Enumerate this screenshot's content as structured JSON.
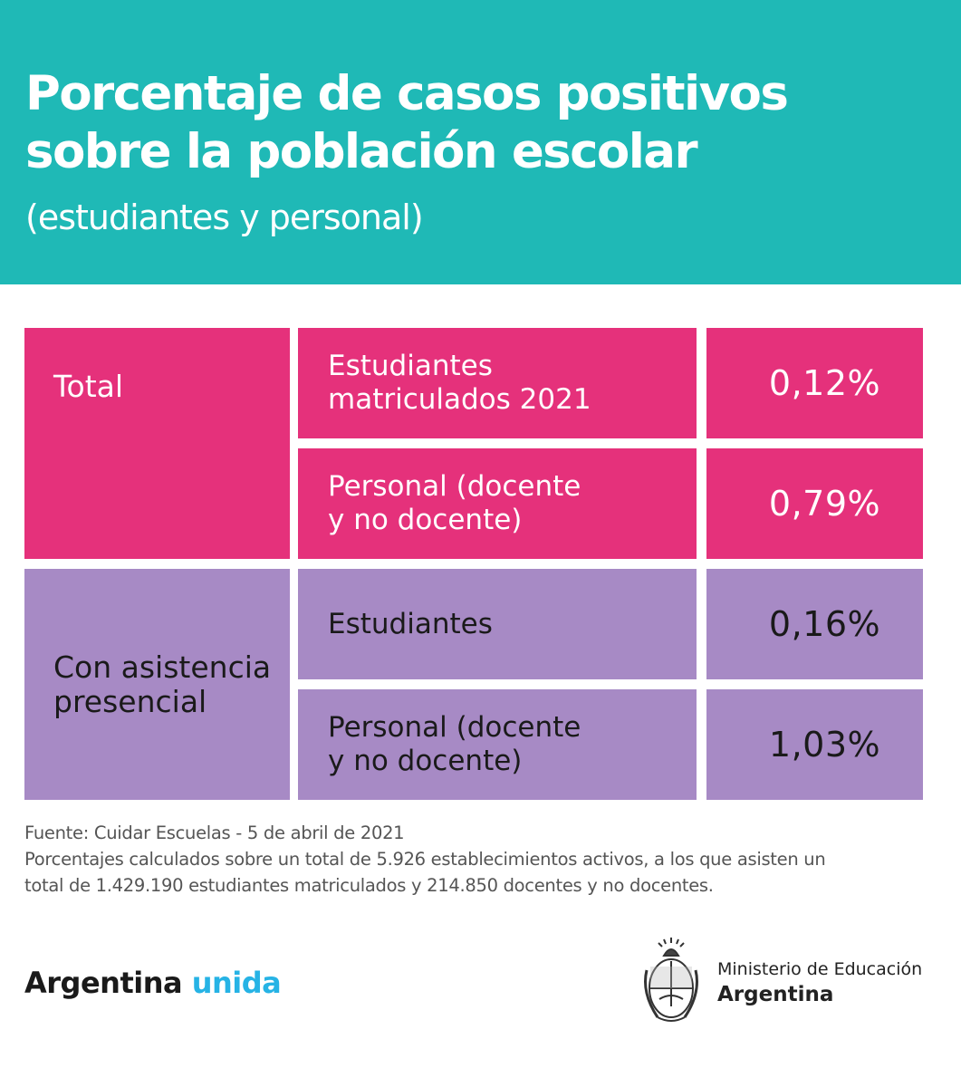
{
  "header": {
    "title_line1": "Porcentaje de casos positivos",
    "title_line2": "sobre la población escolar",
    "subtitle": "(estudiantes y personal)"
  },
  "chart_data": {
    "type": "table",
    "groups": [
      {
        "label": "Total",
        "color": "#e5317b",
        "rows": [
          {
            "label": "Estudiantes\nmatriculados 2021",
            "value": "0,12%"
          },
          {
            "label": "Personal (docente\ny no docente)",
            "value": "0,79%"
          }
        ]
      },
      {
        "label": "Con asistencia\npresencial",
        "color": "#a78ac5",
        "rows": [
          {
            "label": "Estudiantes",
            "value": "0,16%"
          },
          {
            "label": "Personal (docente\ny no docente)",
            "value": "1,03%"
          }
        ]
      }
    ]
  },
  "footnote": {
    "source": "Fuente: Cuidar Escuelas - 5 de abril de 2021",
    "note_line1": "Porcentajes calculados sobre un total de 5.926 establecimientos activos, a los que asisten un",
    "note_line2": "total de 1.429.190 estudiantes matriculados y 214.850 docentes y no docentes."
  },
  "brand": {
    "word1": "Argentina",
    "word2": "unida",
    "accent_color": "#26b3e5"
  },
  "ministry": {
    "line1": "Ministerio de Educación",
    "line2": "Argentina",
    "icon": "national-coat-of-arms-icon"
  },
  "colors": {
    "header_bg": "#1fb9b6"
  }
}
